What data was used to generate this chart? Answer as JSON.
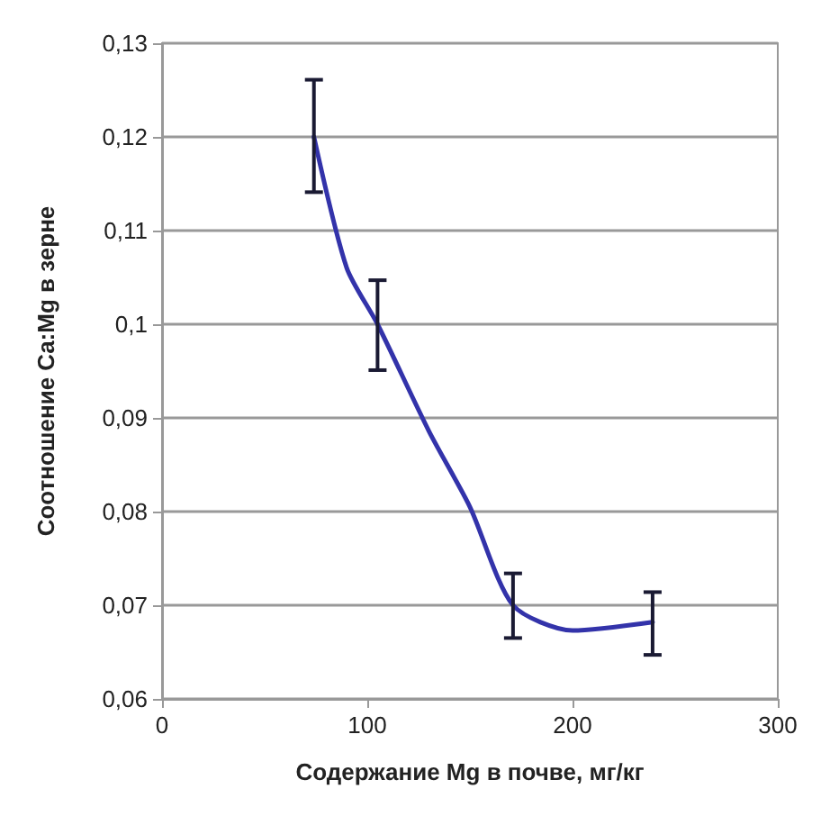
{
  "chart_data": {
    "type": "line",
    "xlabel": "Содержание Mg в почве, мг/кг",
    "ylabel": "Соотношение Ca:Mg в зерне",
    "x": [
      74,
      90,
      105,
      130,
      150,
      171,
      200,
      239
    ],
    "series": [
      {
        "color": "#3333aa",
        "values": [
          0.12,
          0.106,
          0.1,
          0.0886,
          0.0805,
          0.07,
          0.0673,
          0.0682
        ],
        "errors": [
          [
            0.1141,
            0.1261
          ],
          null,
          [
            0.0951,
            0.1047
          ],
          null,
          null,
          [
            0.0665,
            0.0734
          ],
          null,
          [
            0.0647,
            0.0714
          ]
        ]
      }
    ],
    "xlim": [
      0,
      300
    ],
    "xticks": [
      0,
      100,
      200,
      300
    ],
    "ylim": [
      0.06,
      0.13
    ],
    "yticks": [
      {
        "value": 0.06,
        "label": "0,06"
      },
      {
        "value": 0.07,
        "label": "0,07"
      },
      {
        "value": 0.08,
        "label": "0,08"
      },
      {
        "value": 0.09,
        "label": "0,09"
      },
      {
        "value": 0.1,
        "label": "0,1"
      },
      {
        "value": 0.11,
        "label": "0,11"
      },
      {
        "value": 0.12,
        "label": "0,12"
      },
      {
        "value": 0.13,
        "label": "0,13"
      }
    ],
    "grid": "y",
    "marker": "none",
    "line_style": "solid"
  }
}
